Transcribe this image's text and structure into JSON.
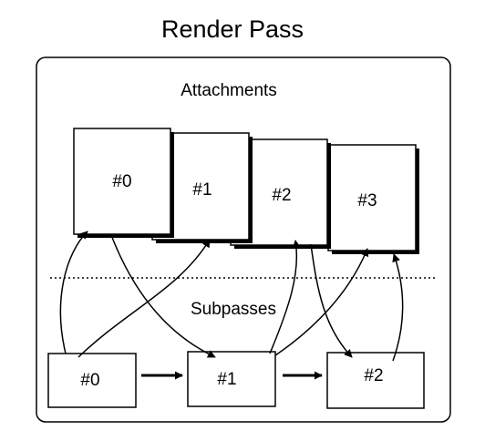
{
  "title": "Render Pass",
  "attachments_label": "Attachments",
  "subpasses_label": "Subpasses",
  "attachments": [
    "#0",
    "#1",
    "#2",
    "#3"
  ],
  "subpasses": [
    "#0",
    "#1",
    "#2"
  ],
  "colors": {
    "stroke": "#000000",
    "fill": "#ffffff"
  }
}
